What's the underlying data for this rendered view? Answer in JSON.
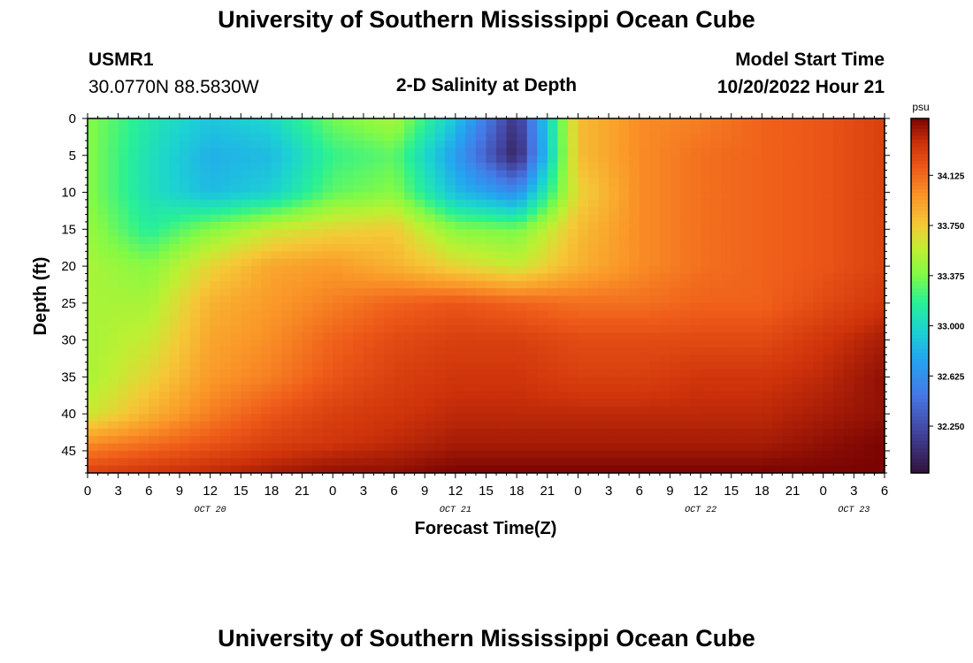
{
  "header": {
    "title": "University of Southern Mississippi Ocean Cube",
    "station_id": "USMR1",
    "coords": "30.0770N  88.5830W",
    "plot_title": "2-D Salinity at Depth",
    "start_label": "Model Start Time",
    "start_value": "10/20/2022 Hour 21"
  },
  "footer": {
    "title": "University of Southern Mississippi Ocean Cube"
  },
  "chart_data": {
    "type": "heatmap",
    "title": "2-D Salinity at Depth",
    "xlabel": "Forecast Time(Z)",
    "ylabel": "Depth (ft)",
    "xlim": [
      0,
      78
    ],
    "ylim": [
      0,
      48
    ],
    "y_ticks": [
      0,
      5,
      10,
      15,
      20,
      25,
      30,
      35,
      40,
      45
    ],
    "x_tick_labels": [
      "0",
      "3",
      "6",
      "9",
      "12",
      "15",
      "18",
      "21",
      "0",
      "3",
      "6",
      "9",
      "12",
      "15",
      "18",
      "21",
      "0",
      "3",
      "6",
      "9",
      "12",
      "15",
      "18",
      "21",
      "0",
      "3",
      "6"
    ],
    "date_labels": [
      {
        "hour": 12,
        "text": "OCT 20"
      },
      {
        "hour": 36,
        "text": "OCT 21"
      },
      {
        "hour": 60,
        "text": "OCT 22"
      },
      {
        "hour": 75,
        "text": "OCT 23"
      }
    ],
    "colorbar": {
      "unit": "psu",
      "range": [
        31.9,
        34.55
      ],
      "ticks": [
        "34.125",
        "33.750",
        "33.375",
        "33.000",
        "32.625",
        "32.250"
      ]
    },
    "grid_hours": [
      0,
      6,
      12,
      18,
      24,
      30,
      36,
      42,
      48,
      54,
      60,
      66,
      72,
      78
    ],
    "grid_depths": [
      0,
      5,
      10,
      15,
      20,
      25,
      30,
      35,
      40,
      44,
      48
    ],
    "salinity": [
      [
        33.4,
        33.1,
        32.9,
        33.0,
        33.35,
        33.5,
        32.9,
        32.1,
        33.8,
        34.0,
        34.05,
        34.15,
        34.2,
        34.3
      ],
      [
        33.4,
        33.05,
        32.8,
        32.85,
        33.2,
        33.3,
        32.7,
        32.0,
        33.8,
        34.0,
        34.1,
        34.15,
        34.2,
        34.3
      ],
      [
        33.4,
        33.05,
        32.85,
        32.95,
        33.3,
        33.4,
        32.85,
        32.6,
        33.7,
        34.0,
        34.1,
        34.15,
        34.2,
        34.3
      ],
      [
        33.45,
        33.15,
        33.4,
        33.6,
        33.7,
        33.75,
        33.4,
        33.35,
        33.8,
        34.0,
        34.1,
        34.15,
        34.2,
        34.3
      ],
      [
        33.5,
        33.4,
        33.7,
        33.9,
        33.95,
        33.85,
        33.7,
        33.6,
        33.85,
        34.0,
        34.1,
        34.15,
        34.2,
        34.3
      ],
      [
        33.5,
        33.5,
        33.85,
        33.95,
        34.05,
        34.15,
        34.2,
        34.15,
        34.1,
        34.1,
        34.15,
        34.15,
        34.25,
        34.35
      ],
      [
        33.5,
        33.6,
        33.9,
        34.0,
        34.15,
        34.25,
        34.3,
        34.3,
        34.25,
        34.25,
        34.25,
        34.25,
        34.35,
        34.45
      ],
      [
        33.5,
        33.7,
        33.95,
        34.05,
        34.2,
        34.3,
        34.35,
        34.35,
        34.3,
        34.3,
        34.35,
        34.35,
        34.4,
        34.5
      ],
      [
        33.6,
        33.85,
        34.05,
        34.2,
        34.3,
        34.35,
        34.4,
        34.4,
        34.4,
        34.4,
        34.4,
        34.4,
        34.45,
        34.5
      ],
      [
        34.0,
        34.1,
        34.2,
        34.3,
        34.35,
        34.4,
        34.45,
        34.45,
        34.45,
        34.45,
        34.45,
        34.45,
        34.5,
        34.55
      ],
      [
        34.3,
        34.35,
        34.4,
        34.45,
        34.5,
        34.5,
        34.55,
        34.55,
        34.55,
        34.55,
        34.55,
        34.55,
        34.55,
        34.55
      ]
    ]
  }
}
